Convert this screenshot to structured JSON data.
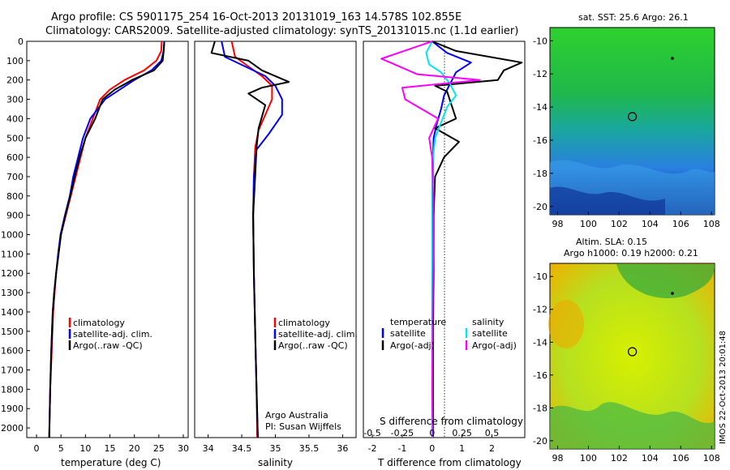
{
  "header": {
    "line1": "Argo profile: CS 5901175_254 16-Oct-2013 20131019_163 14.578S 102.855E",
    "line2": "Climatology: CARS2009. Satellite-adjusted climatology: synTS_20131015.nc (1.1d earlier)"
  },
  "colors": {
    "climatology": "#ff0000",
    "satellite": "#0000ff",
    "argo": "#000000",
    "salinity_sat": "#00e5ee",
    "salinity_argo": "#ff00ff"
  },
  "chart_data": [
    {
      "type": "line",
      "panel": "temperature",
      "xlabel": "temperature (deg C)",
      "ylim": [
        2050,
        0
      ],
      "xlim": [
        -2,
        31
      ],
      "xticks": [
        0,
        5,
        10,
        15,
        20,
        25,
        30
      ],
      "yticks": [
        0,
        100,
        200,
        300,
        400,
        500,
        600,
        700,
        800,
        900,
        1000,
        1100,
        1200,
        1300,
        1400,
        1500,
        1600,
        1700,
        1800,
        1900,
        2000
      ],
      "legend": [
        "climatology",
        "satellite-adj. clim.",
        "Argo(..raw -QC)"
      ],
      "series": [
        {
          "name": "climatology",
          "color": "#ff0000",
          "x": [
            25.6,
            25.5,
            24.5,
            22,
            18,
            15,
            13,
            11.5,
            10,
            9,
            8,
            7,
            6,
            5,
            4.5,
            4,
            3.7,
            3.4,
            3.1,
            2.8,
            2.6
          ],
          "y": [
            0,
            50,
            100,
            150,
            200,
            250,
            300,
            400,
            500,
            600,
            700,
            800,
            900,
            1000,
            1100,
            1200,
            1300,
            1400,
            1600,
            1800,
            2050
          ]
        },
        {
          "name": "satellite-adj. clim.",
          "color": "#0000ff",
          "x": [
            26.1,
            26.0,
            25.5,
            23.5,
            20,
            17,
            14,
            11,
            9.5,
            8.5,
            7.5,
            6.8,
            5.8,
            4.9,
            4.4,
            4,
            3.6,
            3.3,
            3,
            2.8,
            2.6
          ],
          "y": [
            0,
            50,
            100,
            150,
            200,
            250,
            300,
            400,
            500,
            600,
            700,
            800,
            900,
            1000,
            1100,
            1200,
            1300,
            1400,
            1600,
            1800,
            2050
          ]
        },
        {
          "name": "Argo(..raw -QC)",
          "color": "#000000",
          "x": [
            26.1,
            26.0,
            25.8,
            24,
            19.5,
            16,
            13.5,
            12,
            10,
            8.8,
            7.8,
            6.9,
            5.9,
            5,
            4.5,
            4,
            3.6,
            3.3,
            3,
            2.8,
            2.6
          ],
          "y": [
            5,
            50,
            100,
            150,
            200,
            250,
            300,
            400,
            500,
            600,
            700,
            800,
            900,
            1000,
            1100,
            1200,
            1300,
            1400,
            1600,
            1800,
            2050
          ]
        }
      ]
    },
    {
      "type": "line",
      "panel": "salinity",
      "xlabel": "salinity",
      "ylim": [
        2050,
        0
      ],
      "xlim": [
        33.8,
        36.2
      ],
      "xticks": [
        34,
        34.5,
        35,
        35.5,
        36
      ],
      "legend": [
        "climatology",
        "satellite-adj. clim.",
        "Argo(..raw -QC)"
      ],
      "annotation": [
        "Argo Australia",
        "PI: Susan Wijffels"
      ],
      "series": [
        {
          "name": "climatology",
          "color": "#ff0000",
          "x": [
            34.35,
            34.4,
            34.6,
            34.8,
            34.95,
            34.95,
            34.85,
            34.75,
            34.7,
            34.68,
            34.67,
            34.68,
            34.7,
            34.72,
            34.73
          ],
          "y": [
            0,
            80,
            130,
            180,
            230,
            300,
            380,
            460,
            550,
            700,
            900,
            1200,
            1500,
            1800,
            2050
          ]
        },
        {
          "name": "satellite-adj. clim.",
          "color": "#0000ff",
          "x": [
            34.2,
            34.25,
            34.55,
            34.85,
            35.0,
            35.1,
            35.1,
            34.9,
            34.72,
            34.68,
            34.67,
            34.68,
            34.7,
            34.72,
            34.74
          ],
          "y": [
            0,
            80,
            130,
            180,
            230,
            300,
            380,
            480,
            560,
            700,
            900,
            1200,
            1500,
            1800,
            2050
          ]
        },
        {
          "name": "Argo(..raw -QC)",
          "color": "#000000",
          "x": [
            34.1,
            34.05,
            34.6,
            34.8,
            35.2,
            34.8,
            34.6,
            34.85,
            34.75,
            34.72,
            34.7,
            34.67,
            34.68,
            34.7,
            34.72,
            34.74
          ],
          "y": [
            0,
            60,
            100,
            150,
            210,
            240,
            270,
            330,
            450,
            550,
            700,
            900,
            1200,
            1500,
            1800,
            2050
          ]
        }
      ]
    },
    {
      "type": "line",
      "panel": "difference",
      "xlabel": "T difference from climatology",
      "xlabel_top": "S difference from climatology",
      "ylim": [
        2050,
        0
      ],
      "xlim": [
        -2.3,
        3.1
      ],
      "xticks": [
        -2,
        -1,
        0,
        1,
        2
      ],
      "xticks_top": [
        -0.5,
        -0.25,
        0,
        0.25,
        0.5
      ],
      "legend_temperature": {
        "title": "temperature",
        "items": [
          "satellite",
          "Argo(-adj)"
        ]
      },
      "legend_salinity": {
        "title": "salinity",
        "items": [
          "satellite",
          "Argo(-adj)"
        ]
      },
      "series": [
        {
          "name": "T satellite",
          "color": "#0000ff",
          "x": [
            0,
            0.5,
            1.3,
            0.8,
            0.6,
            0.4,
            0.3,
            0.15,
            0.05,
            0.03,
            0.02,
            0.02,
            0.02,
            0.02,
            0.02
          ],
          "y": [
            0,
            60,
            110,
            160,
            220,
            280,
            350,
            430,
            500,
            600,
            800,
            1100,
            1400,
            1800,
            2050
          ]
        },
        {
          "name": "T Argo(-adj)",
          "color": "#000000",
          "x": [
            0,
            0.8,
            3.0,
            2.4,
            2.2,
            0.1,
            0.5,
            0.8,
            0.1,
            0.9,
            0.4,
            0.1,
            0.05,
            0.05,
            0.03,
            0.03,
            0.03
          ],
          "y": [
            0,
            50,
            110,
            150,
            200,
            230,
            260,
            400,
            450,
            520,
            600,
            700,
            900,
            1200,
            1500,
            1800,
            2050
          ]
        },
        {
          "name": "S satellite",
          "color": "#00e5ee",
          "x": [
            0,
            -0.2,
            -0.1,
            0.3,
            0.6,
            0.8,
            0.5,
            0.3,
            0.1,
            0.02,
            0,
            0,
            0,
            0,
            0
          ],
          "y": [
            0,
            60,
            120,
            160,
            220,
            280,
            340,
            420,
            500,
            620,
            800,
            1100,
            1400,
            1800,
            2050
          ]
        },
        {
          "name": "S Argo(-adj)",
          "color": "#ff00ff",
          "x": [
            0,
            -1.7,
            -1.4,
            -0.5,
            1.6,
            -1.0,
            -0.9,
            0.2,
            -0.1,
            0.0,
            0.03,
            0.04,
            0.02,
            0.0,
            0.02
          ],
          "y": [
            0,
            90,
            110,
            170,
            200,
            240,
            300,
            400,
            500,
            600,
            800,
            1100,
            1400,
            1800,
            2050
          ]
        }
      ]
    },
    {
      "type": "heatmap",
      "panel": "sst-map",
      "title": "sat. SST: 25.6 Argo: 26.1",
      "xticks": [
        98,
        100,
        102,
        104,
        106,
        108
      ],
      "yticks": [
        -10,
        -12,
        -14,
        -16,
        -18,
        -20
      ],
      "xlim": [
        97.5,
        108.2
      ],
      "ylim": [
        -20.5,
        -9.2
      ],
      "argo_position": {
        "lon": 102.855,
        "lat": -14.578
      }
    },
    {
      "type": "heatmap",
      "panel": "sla-map",
      "title": "Altim. SLA: 0.15",
      "subtitle": "Argo h1000: 0.19 h2000: 0.21",
      "xticks": [
        98,
        100,
        102,
        104,
        106,
        108
      ],
      "yticks": [
        -10,
        -12,
        -14,
        -16,
        -18,
        -20
      ],
      "xlim": [
        97.5,
        108.2
      ],
      "ylim": [
        -20.5,
        -9.2
      ],
      "argo_position": {
        "lon": 102.855,
        "lat": -14.578
      }
    }
  ],
  "sidebar_stamp": "IMOS 22-Oct-2013 20:01:48"
}
